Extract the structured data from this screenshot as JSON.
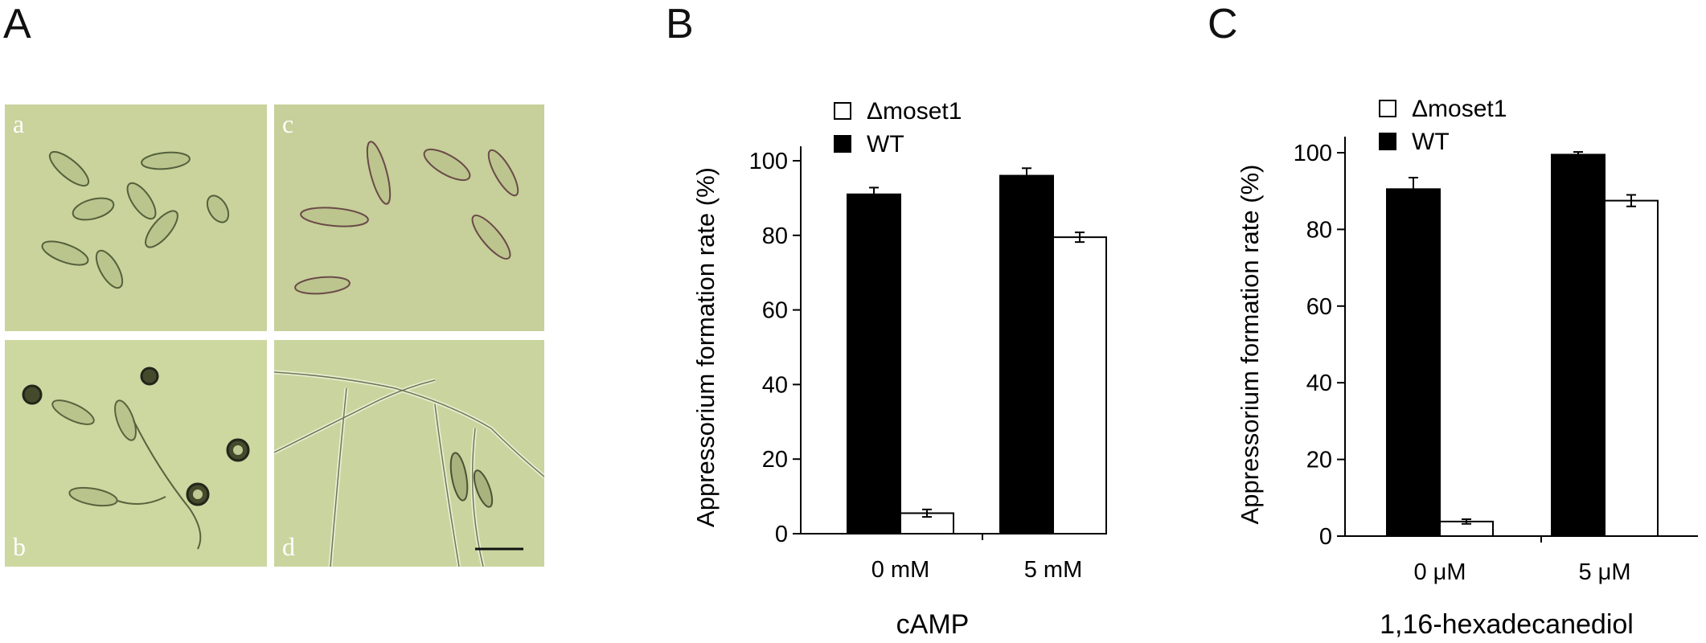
{
  "panels": {
    "a": "A",
    "b": "B",
    "c": "C"
  },
  "micrographs": {
    "a": "a",
    "b": "b",
    "c": "c",
    "d": "d"
  },
  "chart_data": [
    {
      "type": "bar",
      "panel": "B",
      "title": "",
      "xlabel": "cAMP",
      "ylabel": "Appressorium formation rate (%)",
      "categories": [
        "0 mM",
        "5 mM"
      ],
      "ylim": [
        0,
        100
      ],
      "yticks": [
        "0",
        "20",
        "40",
        "60",
        "80",
        "100"
      ],
      "legend_position": "top-left",
      "series": [
        {
          "name": "WT",
          "color": "#000000",
          "values": [
            91,
            96
          ],
          "errors": [
            1.8,
            2.0
          ]
        },
        {
          "name": "Δmoset1",
          "color": "#ffffff",
          "values": [
            5.5,
            79.5
          ],
          "errors": [
            1.0,
            1.3
          ]
        }
      ]
    },
    {
      "type": "bar",
      "panel": "C",
      "title": "",
      "xlabel": "1,16-hexadecanediol",
      "ylabel": "Appressorium formation rate (%)",
      "categories": [
        "0 μM",
        "5 μM"
      ],
      "ylim": [
        0,
        100
      ],
      "yticks": [
        "0",
        "20",
        "40",
        "60",
        "80",
        "100"
      ],
      "legend_position": "top-left",
      "series": [
        {
          "name": "WT",
          "color": "#000000",
          "values": [
            90.5,
            99.5
          ],
          "errors": [
            3.0,
            0.7
          ]
        },
        {
          "name": "Δmoset1",
          "color": "#ffffff",
          "values": [
            3.8,
            87.5
          ],
          "errors": [
            0.6,
            1.5
          ]
        }
      ]
    }
  ]
}
